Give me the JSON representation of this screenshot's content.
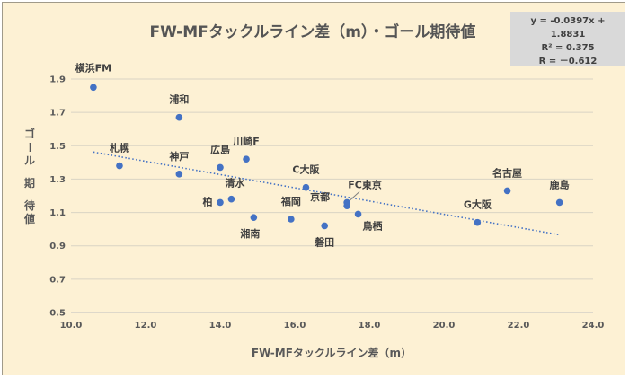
{
  "chart_data": {
    "type": "scatter",
    "title": "FW-MFタックルライン差（m）・ゴール期待値",
    "xlabel": "FW-MFタックルライン差（m）",
    "ylabel": "ゴール期待値",
    "xlim": [
      10.0,
      24.0
    ],
    "ylim": [
      0.5,
      1.9
    ],
    "x_ticks": [
      "10.0",
      "12.0",
      "14.0",
      "16.0",
      "18.0",
      "20.0",
      "22.0",
      "24.0"
    ],
    "y_ticks": [
      "0.5",
      "0.7",
      "0.9",
      "1.1",
      "1.3",
      "1.5",
      "1.7",
      "1.9"
    ],
    "grid": true,
    "marker_color": "#4472c4",
    "trendline": {
      "type": "linear",
      "slope": -0.0397,
      "intercept": 1.8831,
      "style": "dotted",
      "color": "#4472c4"
    },
    "equation_box": {
      "equation": "y = -0.0397x + 1.8831",
      "r2": "R² = 0.375",
      "r": "R = －0.612"
    },
    "points": [
      {
        "label": "横浜FM",
        "x": 10.6,
        "y": 1.85
      },
      {
        "label": "札幌",
        "x": 11.3,
        "y": 1.38
      },
      {
        "label": "浦和",
        "x": 12.9,
        "y": 1.67
      },
      {
        "label": "神戸",
        "x": 12.9,
        "y": 1.33
      },
      {
        "label": "広島",
        "x": 14.0,
        "y": 1.37
      },
      {
        "label": "柏",
        "x": 14.0,
        "y": 1.16
      },
      {
        "label": "清水",
        "x": 14.3,
        "y": 1.18
      },
      {
        "label": "川崎F",
        "x": 14.7,
        "y": 1.42
      },
      {
        "label": "湘南",
        "x": 14.9,
        "y": 1.07
      },
      {
        "label": "福岡",
        "x": 15.9,
        "y": 1.06
      },
      {
        "label": "C大阪",
        "x": 16.3,
        "y": 1.25
      },
      {
        "label": "磐田",
        "x": 16.8,
        "y": 1.02
      },
      {
        "label": "FC東京",
        "x": 17.4,
        "y": 1.16
      },
      {
        "label": "京都",
        "x": 17.4,
        "y": 1.14
      },
      {
        "label": "鳥栖",
        "x": 17.7,
        "y": 1.09
      },
      {
        "label": "G大阪",
        "x": 20.9,
        "y": 1.04
      },
      {
        "label": "名古屋",
        "x": 21.7,
        "y": 1.23
      },
      {
        "label": "鹿島",
        "x": 23.1,
        "y": 1.16
      }
    ]
  }
}
